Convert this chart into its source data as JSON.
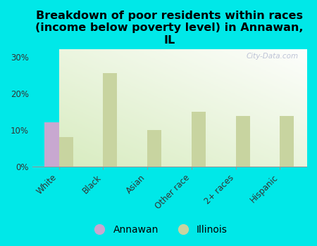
{
  "title": "Breakdown of poor residents within races\n(income below poverty level) in Annawan,\nIL",
  "categories": [
    "White",
    "Black",
    "Asian",
    "Other race",
    "2+ races",
    "Hispanic"
  ],
  "annawan_values": [
    12.0,
    0,
    0,
    0,
    0,
    0
  ],
  "illinois_values": [
    8.0,
    25.5,
    10.0,
    15.0,
    13.8,
    13.8
  ],
  "annawan_color": "#c8a8d0",
  "illinois_color": "#c8d4a0",
  "background_color": "#00e8e8",
  "ylim": [
    0,
    32
  ],
  "yticks": [
    0,
    10,
    20,
    30
  ],
  "ytick_labels": [
    "0%",
    "10%",
    "20%",
    "30%"
  ],
  "bar_width": 0.32,
  "watermark": "City-Data.com",
  "legend_annawan": "Annawan",
  "legend_illinois": "Illinois",
  "title_fontsize": 11.5,
  "tick_fontsize": 8.5
}
